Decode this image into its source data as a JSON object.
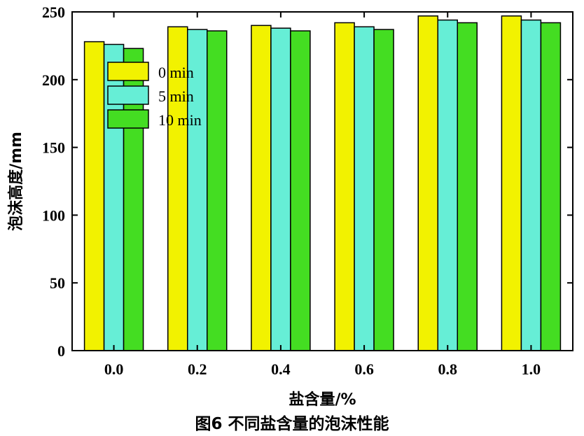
{
  "chart_data": {
    "type": "bar",
    "title": "",
    "caption": "图6  不同盐含量的泡沫性能",
    "xlabel": "盐含量/%",
    "ylabel": "泡沫高度/mm",
    "categories": [
      "0.0",
      "0.2",
      "0.4",
      "0.6",
      "0.8",
      "1.0"
    ],
    "ylim": [
      0,
      250
    ],
    "yticks": [
      "0",
      "50",
      "100",
      "150",
      "200",
      "250"
    ],
    "series": [
      {
        "name": "0 min",
        "color": "#f2f200",
        "values": [
          228,
          239,
          240,
          242,
          247,
          247
        ]
      },
      {
        "name": "5 min",
        "color": "#66eed6",
        "values": [
          226,
          237,
          238,
          239,
          244,
          244
        ]
      },
      {
        "name": "10 min",
        "color": "#44dd22",
        "values": [
          223,
          236,
          236,
          237,
          242,
          242
        ]
      }
    ],
    "legend_position": "upper-left",
    "grid": false
  }
}
